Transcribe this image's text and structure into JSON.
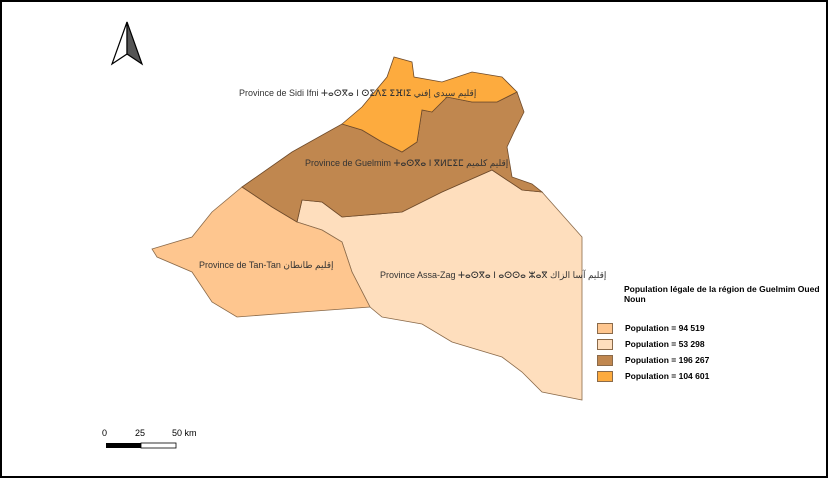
{
  "colors": {
    "tan_tan": "#fec68f",
    "assa_zag": "#fedebd",
    "guelmim": "#c0874f",
    "sidi_ifni": "#fdab3e"
  },
  "labels": {
    "sidi_ifni": "Province de Sidi Ifni ⵜⴰⵙⴳⴰ ⵏ ⵙⵉⴷⵉ ⵉⴼⵏⵉ إقليم سيدي إفني",
    "guelmim": "Province de Guelmim ⵜⴰⵙⴳⴰ ⵏ ⴳⵍⵎⵉⵎ إقليم كلميم",
    "tan_tan": "Province de Tan-Tan إقليم طانطان",
    "assa_zag": "Province Assa-Zag ⵜⴰⵙⴳⴰ ⵏ ⴰⵙⵙⴰ ⵣⴰⴳ إقليم آسا الزاك"
  },
  "legend": {
    "title": "Population légale de la région de Guelmim Oued Noun",
    "items": [
      {
        "label": "Population = 94 519",
        "color": "#fec68f"
      },
      {
        "label": "Population = 53 298",
        "color": "#fedebd"
      },
      {
        "label": "Population = 196 267",
        "color": "#c0874f"
      },
      {
        "label": "Population = 104 601",
        "color": "#fdab3e"
      }
    ]
  },
  "scale_bar": {
    "ticks": [
      "0",
      "25",
      "50 km"
    ]
  },
  "north_arrow": "north-arrow-icon"
}
